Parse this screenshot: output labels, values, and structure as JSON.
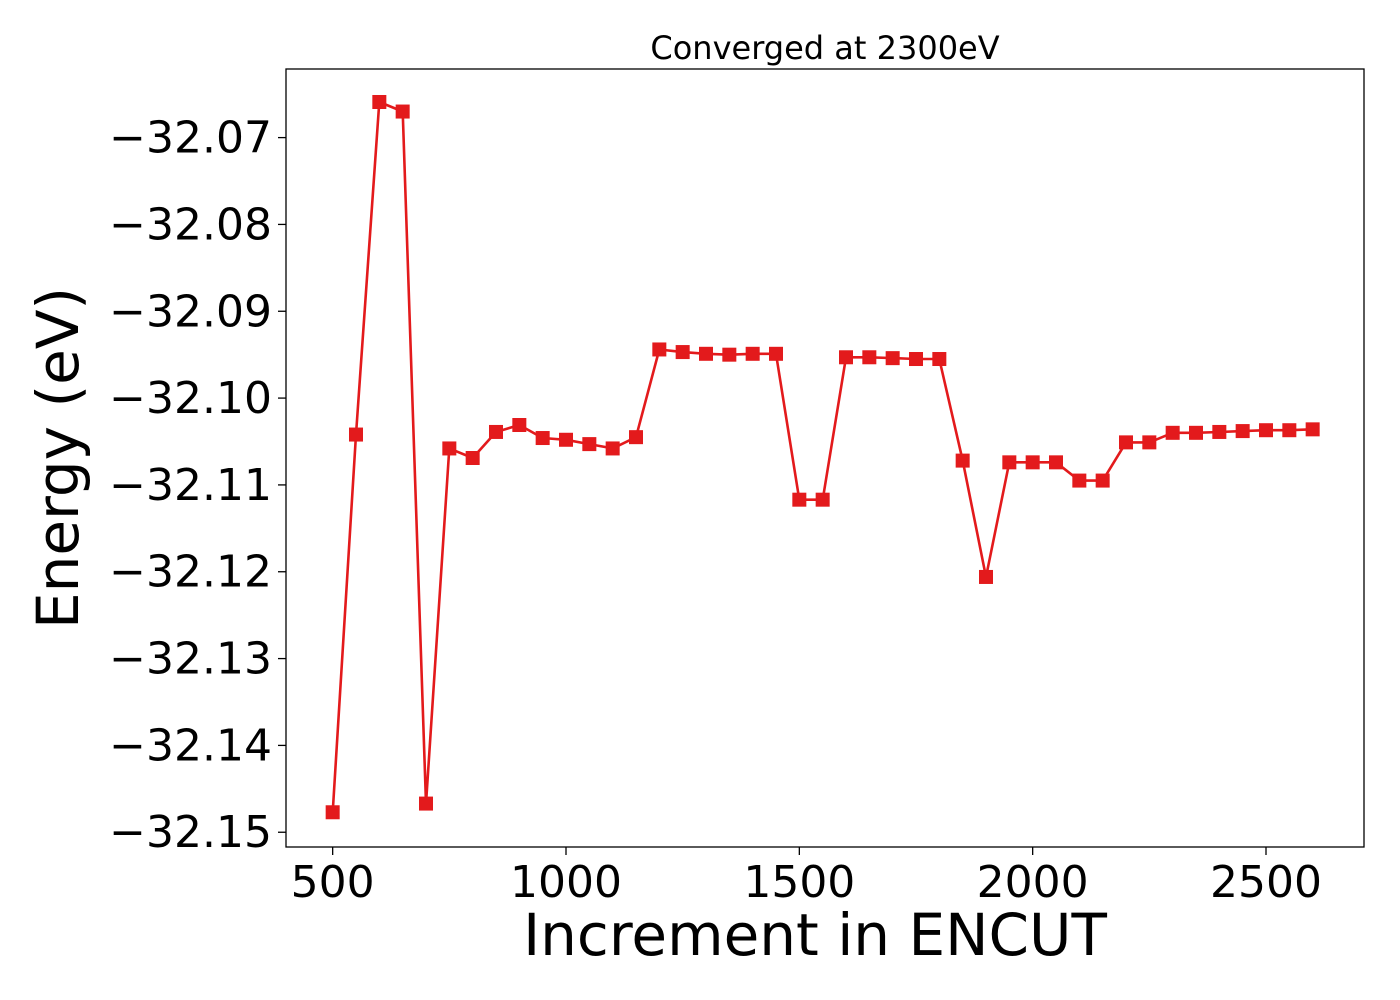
{
  "chart_data": {
    "type": "line",
    "title": "Converged at 2300eV",
    "xlabel": "Increment in ENCUT",
    "ylabel": "Energy (eV)",
    "xlim": [
      400,
      2710
    ],
    "ylim": [
      -32.1517,
      -32.0621
    ],
    "xticks": [
      500,
      1000,
      1500,
      2000,
      2500
    ],
    "xtick_labels": [
      "500",
      "1000",
      "1500",
      "2000",
      "2500"
    ],
    "yticks": [
      -32.07,
      -32.08,
      -32.09,
      -32.1,
      -32.11,
      -32.12,
      -32.13,
      -32.14,
      -32.15
    ],
    "ytick_labels": [
      "−32.07",
      "−32.08",
      "−32.09",
      "−32.10",
      "−32.11",
      "−32.12",
      "−32.13",
      "−32.14",
      "−32.15"
    ],
    "grid": false,
    "series": [
      {
        "color": "#e31a1c",
        "marker": "square",
        "x": [
          500,
          550,
          600,
          650,
          700,
          750,
          800,
          850,
          900,
          950,
          1000,
          1050,
          1100,
          1150,
          1200,
          1250,
          1300,
          1350,
          1400,
          1450,
          1500,
          1550,
          1600,
          1650,
          1700,
          1750,
          1800,
          1850,
          1900,
          1950,
          2000,
          2050,
          2100,
          2150,
          2200,
          2250,
          2300,
          2350,
          2400,
          2450,
          2500,
          2550,
          2600
        ],
        "y": [
          -32.1477,
          -32.1042,
          -32.0659,
          -32.067,
          -32.1467,
          -32.1058,
          -32.1069,
          -32.1039,
          -32.1031,
          -32.1046,
          -32.1048,
          -32.1053,
          -32.1058,
          -32.1045,
          -32.0944,
          -32.0947,
          -32.0949,
          -32.095,
          -32.0949,
          -32.0949,
          -32.1117,
          -32.1117,
          -32.0953,
          -32.0953,
          -32.0954,
          -32.0955,
          -32.0955,
          -32.1072,
          -32.1206,
          -32.1074,
          -32.1074,
          -32.1074,
          -32.1095,
          -32.1095,
          -32.1051,
          -32.1051,
          -32.104,
          -32.104,
          -32.1039,
          -32.1038,
          -32.1037,
          -32.1037,
          -32.1036
        ]
      }
    ]
  }
}
